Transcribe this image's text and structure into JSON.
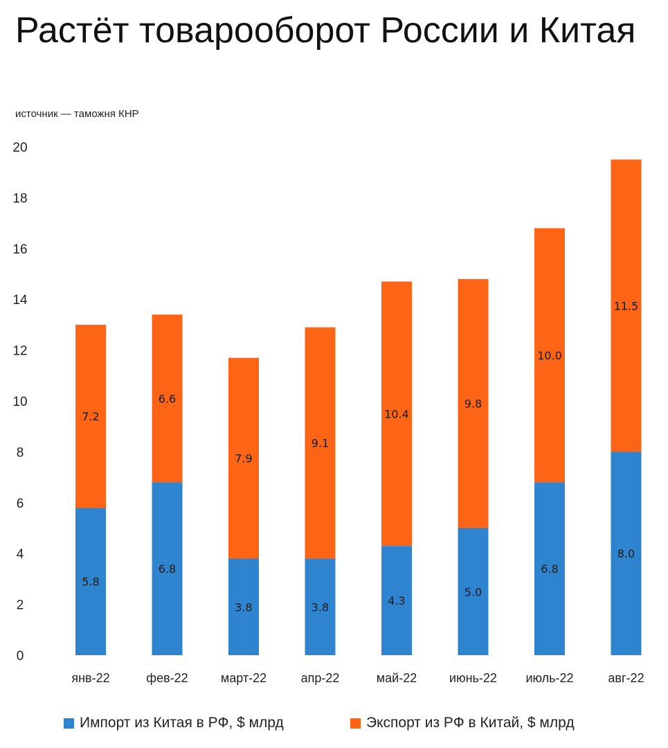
{
  "header": {
    "title": "Растёт товарооборот России и Китая",
    "subtitle": "источник — таможня КНР"
  },
  "colors": {
    "import": "#2e84cf",
    "export": "#fd6416"
  },
  "chart_data": {
    "type": "bar",
    "stacked": true,
    "title": "Растёт товарооборот России и Китая",
    "xlabel": "",
    "ylabel": "",
    "ylim": [
      0,
      20
    ],
    "yticks": [
      0,
      2,
      4,
      6,
      8,
      10,
      12,
      14,
      16,
      18,
      20
    ],
    "grid": false,
    "legend_position": "bottom",
    "categories": [
      "янв-22",
      "фев-22",
      "март-22",
      "апр-22",
      "май-22",
      "июнь-22",
      "июль-22",
      "авг-22"
    ],
    "series": [
      {
        "name": "Импорт из Китая в РФ, $ млрд",
        "color": "#2e84cf",
        "values": [
          5.8,
          6.8,
          3.8,
          3.8,
          4.3,
          5.0,
          6.8,
          8.0
        ],
        "labels": [
          "5.8",
          "6.8",
          "3.8",
          "3.8",
          "4.3",
          "5.0",
          "6.8",
          "8.0"
        ]
      },
      {
        "name": "Экспорт из РФ в Китай, $ млрд",
        "color": "#fd6416",
        "values": [
          7.2,
          6.6,
          7.9,
          9.1,
          10.4,
          9.8,
          10.0,
          11.5
        ],
        "labels": [
          "7.2",
          "6.6",
          "7.9",
          "9.1",
          "10.4",
          "9.8",
          "10.0",
          "11.5"
        ]
      }
    ]
  }
}
